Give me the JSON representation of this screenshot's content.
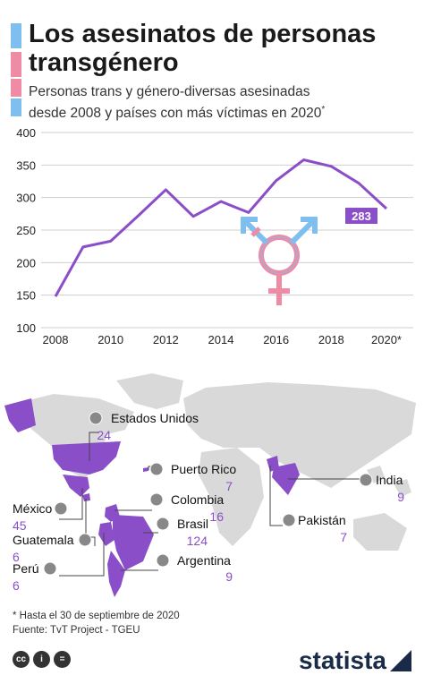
{
  "header": {
    "title_line1": "Los asesinatos de personas",
    "title_line2": "transgénero",
    "subtitle_line1": "Personas trans y género-diversas asesinadas",
    "subtitle_line2": "desde 2008 y países con más víctimas en 2020",
    "subtitle_mark": "*"
  },
  "colors": {
    "line": "#8a4fc8",
    "map_land": "#d9d9d9",
    "map_highlight": "#8a4fc8",
    "trans_blue": "#7ebff0",
    "trans_pink": "#ee8ba5",
    "count": "#8a4fc8"
  },
  "chart_data": {
    "type": "line",
    "x": [
      "2008",
      "2009",
      "2010",
      "2011",
      "2012",
      "2013",
      "2014",
      "2015",
      "2016",
      "2017",
      "2018",
      "2019",
      "2020*"
    ],
    "series": [
      {
        "values": [
          148,
          224,
          233,
          272,
          312,
          271,
          294,
          277,
          326,
          358,
          348,
          322,
          283
        ]
      }
    ],
    "x_tick_labels": [
      "2008",
      "2010",
      "2012",
      "2014",
      "2016",
      "2018",
      "2020*"
    ],
    "y_ticks": [
      100,
      150,
      200,
      250,
      300,
      350,
      400
    ],
    "ylim": [
      100,
      400
    ],
    "grid": true,
    "last_value_label": "283"
  },
  "map": {
    "countries": [
      {
        "name": "Estados Unidos",
        "count": "24",
        "icon": "us-flag-icon"
      },
      {
        "name": "Puerto Rico",
        "count": "7",
        "icon": "puerto-rico-flag-icon"
      },
      {
        "name": "Colombia",
        "count": "16",
        "icon": "colombia-flag-icon"
      },
      {
        "name": "Brasil",
        "count": "124",
        "icon": "brazil-flag-icon"
      },
      {
        "name": "Argentina",
        "count": "9",
        "icon": "argentina-flag-icon"
      },
      {
        "name": "México",
        "count": "45",
        "icon": "mexico-flag-icon"
      },
      {
        "name": "Guatemala",
        "count": "6",
        "icon": "guatemala-flag-icon"
      },
      {
        "name": "Perú",
        "count": "6",
        "icon": "peru-flag-icon"
      },
      {
        "name": "India",
        "count": "9",
        "icon": "india-flag-icon"
      },
      {
        "name": "Pakistán",
        "count": "7",
        "icon": "pakistan-flag-icon"
      }
    ]
  },
  "footer": {
    "note": "* Hasta el 30 de septiembre de 2020",
    "source": "Fuente: TvT Project - TGEU",
    "brand": "statista"
  }
}
